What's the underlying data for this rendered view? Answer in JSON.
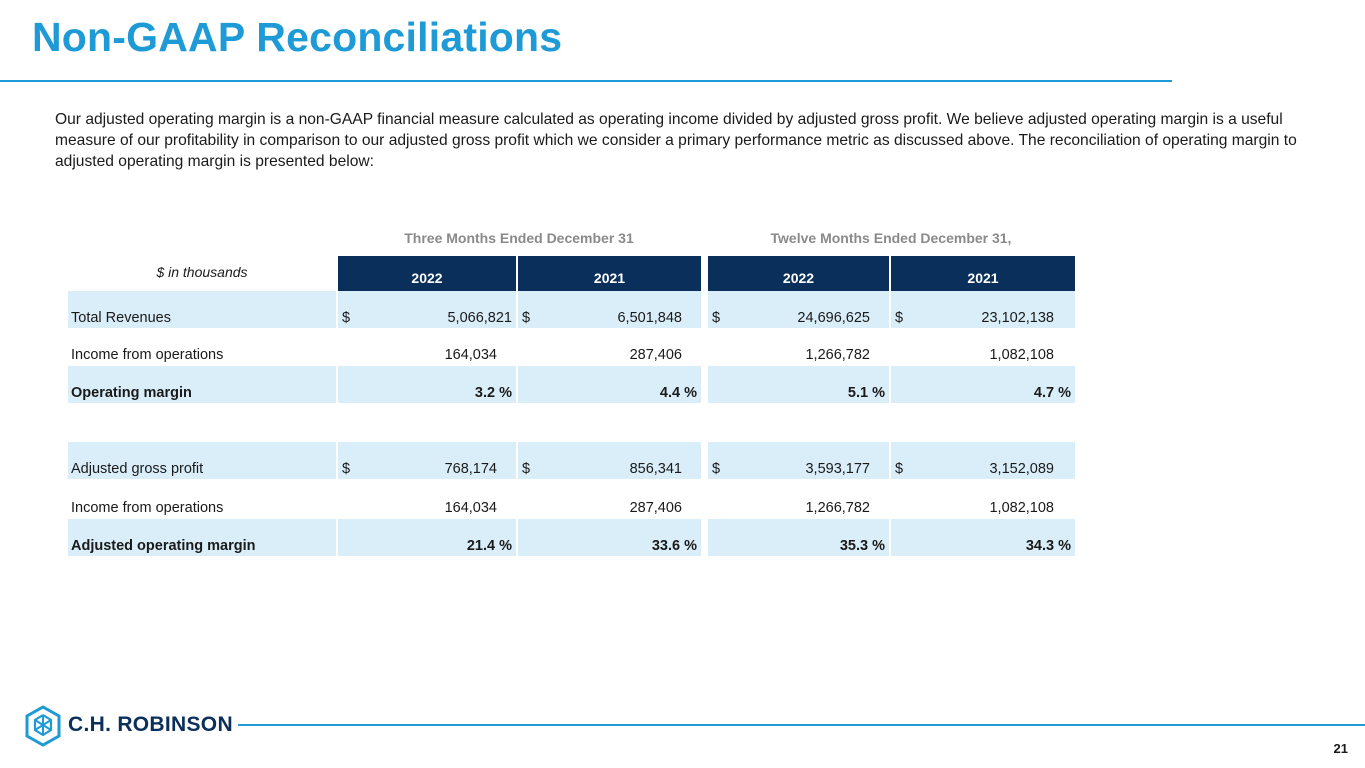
{
  "title": "Non-GAAP Reconciliations",
  "intro": "Our adjusted operating margin is a non-GAAP financial measure calculated as operating income divided by adjusted gross profit. We believe adjusted operating margin is a useful measure of our profitability in comparison to our adjusted gross profit which we consider a primary performance metric as discussed above. The reconciliation of operating margin to adjusted operating margin is presented below:",
  "table": {
    "units_label": "$ in thousands",
    "groups": [
      "Three Months Ended December 31",
      "Twelve Months Ended December 31,"
    ],
    "columns": [
      "2022",
      "2021",
      "2022",
      "2021"
    ],
    "rows": [
      {
        "label": "Total Revenues",
        "cells": [
          {
            "d": "$",
            "v": "5,066,821"
          },
          {
            "d": "$",
            "v": "6,501,848"
          },
          {
            "d": "$",
            "v": "24,696,625"
          },
          {
            "d": "$",
            "v": "23,102,138"
          }
        ]
      },
      {
        "label": "Income from operations",
        "cells": [
          {
            "d": "",
            "v": "164,034"
          },
          {
            "d": "",
            "v": "287,406"
          },
          {
            "d": "",
            "v": "1,266,782"
          },
          {
            "d": "",
            "v": "1,082,108"
          }
        ]
      },
      {
        "label": "Operating margin",
        "cells": [
          {
            "d": "",
            "v": "3.2 %"
          },
          {
            "d": "",
            "v": "4.4 %"
          },
          {
            "d": "",
            "v": "5.1 %"
          },
          {
            "d": "",
            "v": "4.7 %"
          }
        ]
      },
      {
        "label": "Adjusted gross profit",
        "cells": [
          {
            "d": "$",
            "v": "768,174"
          },
          {
            "d": "$",
            "v": "856,341"
          },
          {
            "d": "$",
            "v": "3,593,177"
          },
          {
            "d": "$",
            "v": "3,152,089"
          }
        ]
      },
      {
        "label": "Income from operations",
        "cells": [
          {
            "d": "",
            "v": "164,034"
          },
          {
            "d": "",
            "v": "287,406"
          },
          {
            "d": "",
            "v": "1,266,782"
          },
          {
            "d": "",
            "v": "1,082,108"
          }
        ]
      },
      {
        "label": "Adjusted operating margin",
        "cells": [
          {
            "d": "",
            "v": "21.4 %"
          },
          {
            "d": "",
            "v": "33.6 %"
          },
          {
            "d": "",
            "v": "35.3 %"
          },
          {
            "d": "",
            "v": "34.3 %"
          }
        ]
      }
    ]
  },
  "footer": {
    "logo_text": "C.H. ROBINSON",
    "logo_icon": "cube-logo-icon",
    "page_number": "21"
  },
  "colors": {
    "accent": "#1e9ad6",
    "header_bg": "#0b2f5b",
    "row_shade": "#daeef9"
  }
}
